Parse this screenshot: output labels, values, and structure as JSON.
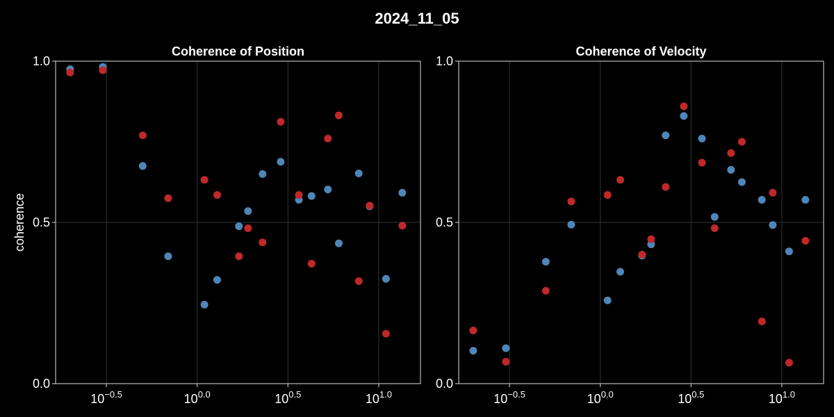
{
  "figure_title": "2024_11_05",
  "colors": {
    "background": "#000000",
    "series_blue": "#4f86b8",
    "series_red": "#c0282a",
    "grid": "#333333",
    "frame": "#bbbbbb"
  },
  "chart_data": [
    {
      "type": "scatter",
      "title": "Coherence of Position",
      "xlabel": "",
      "ylabel": "coherence",
      "xscale": "log10",
      "xlim_log10": [
        -0.78,
        1.23
      ],
      "ylim": [
        0,
        1
      ],
      "xtick_log10": [
        -0.5,
        0.0,
        0.5,
        1.0
      ],
      "xtick_labels": [
        {
          "base": "10",
          "exp": "−0.5"
        },
        {
          "base": "10",
          "exp": "0.0"
        },
        {
          "base": "10",
          "exp": "0.5"
        },
        {
          "base": "10",
          "exp": "1.0"
        }
      ],
      "yticks": [
        0.0,
        0.5,
        1.0
      ],
      "ytick_labels": [
        "0.0",
        "0.5",
        "1.0"
      ],
      "x_log10": [
        -0.7,
        -0.52,
        -0.3,
        -0.16,
        0.04,
        0.11,
        0.23,
        0.28,
        0.36,
        0.46,
        0.56,
        0.63,
        0.72,
        0.78,
        0.89,
        0.95,
        1.04,
        1.13
      ],
      "series": [
        {
          "name": "blue",
          "color": "#4f86b8",
          "values": [
            0.975,
            0.982,
            0.675,
            0.395,
            0.245,
            0.322,
            0.488,
            0.535,
            0.65,
            0.688,
            0.57,
            0.582,
            0.602,
            0.435,
            0.652,
            0.55,
            0.325,
            0.592
          ]
        },
        {
          "name": "red",
          "color": "#c0282a",
          "values": [
            0.965,
            0.972,
            0.77,
            0.575,
            0.632,
            0.585,
            0.395,
            0.482,
            0.438,
            0.812,
            0.585,
            0.372,
            0.76,
            0.832,
            0.318,
            0.552,
            0.155,
            0.49
          ]
        }
      ]
    },
    {
      "type": "scatter",
      "title": "Coherence of Velocity",
      "xlabel": "",
      "ylabel": "",
      "xscale": "log10",
      "xlim_log10": [
        -0.78,
        1.23
      ],
      "ylim": [
        0,
        1
      ],
      "xtick_log10": [
        -0.5,
        0.0,
        0.5,
        1.0
      ],
      "xtick_labels": [
        {
          "base": "10",
          "exp": "−0.5"
        },
        {
          "base": "10",
          "exp": "0.0"
        },
        {
          "base": "10",
          "exp": "0.5"
        },
        {
          "base": "10",
          "exp": "1.0"
        }
      ],
      "yticks": [
        0.0,
        0.5,
        1.0
      ],
      "ytick_labels": [
        "0.0",
        "0.5",
        "1.0"
      ],
      "x_log10": [
        -0.7,
        -0.52,
        -0.3,
        -0.16,
        0.04,
        0.11,
        0.23,
        0.28,
        0.36,
        0.46,
        0.56,
        0.63,
        0.72,
        0.78,
        0.89,
        0.95,
        1.04,
        1.13
      ],
      "series": [
        {
          "name": "blue",
          "color": "#4f86b8",
          "values": [
            0.102,
            0.11,
            0.378,
            0.493,
            0.258,
            0.347,
            0.397,
            0.432,
            0.77,
            0.83,
            0.76,
            0.517,
            0.663,
            0.625,
            0.57,
            0.492,
            0.41,
            0.57
          ]
        },
        {
          "name": "red",
          "color": "#c0282a",
          "values": [
            0.165,
            0.068,
            0.288,
            0.565,
            0.585,
            0.632,
            0.4,
            0.448,
            0.61,
            0.86,
            0.685,
            0.482,
            0.715,
            0.75,
            0.193,
            0.592,
            0.065,
            0.443
          ]
        }
      ]
    }
  ]
}
